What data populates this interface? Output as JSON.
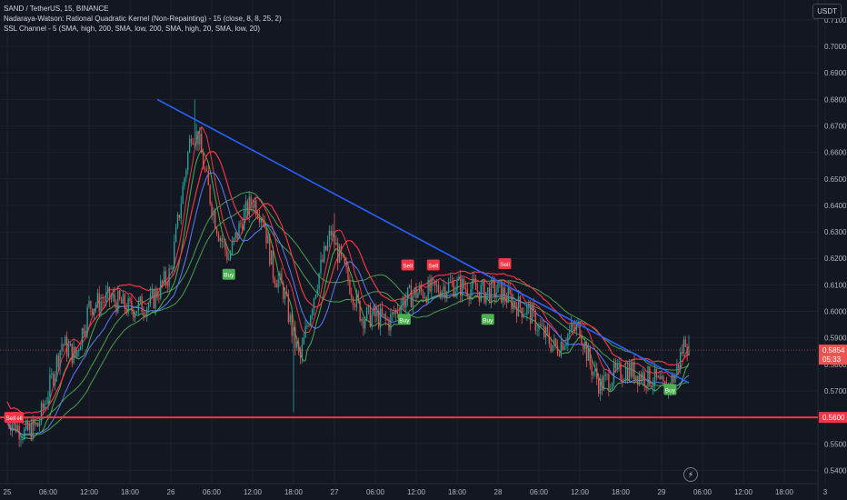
{
  "legend": {
    "line1": "SAND / TetherUS, 15, BINANCE",
    "line2": "Nadaraya-Watson: Rational Quadratic Kernel (Non-Repainting) - 15 (close, 8, 8, 25, 2)",
    "line3": "SSL Channel - 5 (SMA, high, 200, SMA, low, 200, SMA, high, 20, SMA, low, 20)"
  },
  "currency": "USDT",
  "colors": {
    "bg": "#131722",
    "up": "#26a69a",
    "down": "#ef5350",
    "grid": "#1e222d",
    "trend": "#2962ff",
    "support": "#f23645",
    "green_line": "#4caf50",
    "red_line": "#f23645",
    "blue_line": "#5b7cfa"
  },
  "chart_data": {
    "type": "candlestick",
    "timeframe": "15",
    "symbol": "SAND / TetherUS",
    "ylim": [
      0.535,
      0.7175
    ],
    "y_ticks": [
      "0.7100",
      "0.7000",
      "0.6900",
      "0.6800",
      "0.6700",
      "0.6600",
      "0.6500",
      "0.6400",
      "0.6300",
      "0.6200",
      "0.6100",
      "0.6000",
      "0.5900",
      "0.5800",
      "0.5700",
      "0.5600",
      "0.5500",
      "0.5400"
    ],
    "x_ticks": [
      {
        "label": "25",
        "t": 0
      },
      {
        "label": "06:00",
        "t": 24
      },
      {
        "label": "12:00",
        "t": 48
      },
      {
        "label": "18:00",
        "t": 72
      },
      {
        "label": "26",
        "t": 96
      },
      {
        "label": "06:00",
        "t": 120
      },
      {
        "label": "12:00",
        "t": 144
      },
      {
        "label": "18:00",
        "t": 168
      },
      {
        "label": "27",
        "t": 192
      },
      {
        "label": "06:00",
        "t": 216
      },
      {
        "label": "12:00",
        "t": 240
      },
      {
        "label": "18:00",
        "t": 264
      },
      {
        "label": "28",
        "t": 288
      },
      {
        "label": "06:00",
        "t": 312
      },
      {
        "label": "12:00",
        "t": 336
      },
      {
        "label": "18:00",
        "t": 360
      },
      {
        "label": "29",
        "t": 384
      },
      {
        "label": "06:00",
        "t": 408
      },
      {
        "label": "12:00",
        "t": 432
      },
      {
        "label": "18:00",
        "t": 456
      },
      {
        "label": "3",
        "t": 480
      }
    ],
    "last_bar_t": 400,
    "price_keypoints": [
      [
        0,
        0.56
      ],
      [
        10,
        0.554
      ],
      [
        18,
        0.557
      ],
      [
        25,
        0.572
      ],
      [
        32,
        0.588
      ],
      [
        40,
        0.583
      ],
      [
        48,
        0.602
      ],
      [
        60,
        0.605
      ],
      [
        72,
        0.601
      ],
      [
        84,
        0.603
      ],
      [
        96,
        0.615
      ],
      [
        102,
        0.642
      ],
      [
        108,
        0.668
      ],
      [
        112,
        0.666
      ],
      [
        116,
        0.652
      ],
      [
        120,
        0.64
      ],
      [
        124,
        0.63
      ],
      [
        130,
        0.62
      ],
      [
        138,
        0.635
      ],
      [
        144,
        0.642
      ],
      [
        150,
        0.636
      ],
      [
        156,
        0.615
      ],
      [
        162,
        0.608
      ],
      [
        168,
        0.59
      ],
      [
        172,
        0.582
      ],
      [
        176,
        0.595
      ],
      [
        182,
        0.612
      ],
      [
        190,
        0.63
      ],
      [
        194,
        0.622
      ],
      [
        200,
        0.612
      ],
      [
        208,
        0.598
      ],
      [
        216,
        0.598
      ],
      [
        224,
        0.596
      ],
      [
        232,
        0.604
      ],
      [
        240,
        0.607
      ],
      [
        250,
        0.608
      ],
      [
        260,
        0.61
      ],
      [
        270,
        0.609
      ],
      [
        280,
        0.607
      ],
      [
        288,
        0.608
      ],
      [
        294,
        0.605
      ],
      [
        300,
        0.602
      ],
      [
        306,
        0.6
      ],
      [
        314,
        0.592
      ],
      [
        322,
        0.586
      ],
      [
        330,
        0.592
      ],
      [
        336,
        0.594
      ],
      [
        342,
        0.58
      ],
      [
        348,
        0.572
      ],
      [
        356,
        0.576
      ],
      [
        364,
        0.578
      ],
      [
        372,
        0.576
      ],
      [
        380,
        0.574
      ],
      [
        386,
        0.57
      ],
      [
        392,
        0.576
      ],
      [
        398,
        0.59
      ],
      [
        400,
        0.5854
      ]
    ],
    "candles_per_keypoint_step": 1,
    "nadaraya_upper_offset": 0.006,
    "nadaraya_lower_offset": -0.002,
    "trendline": {
      "start": {
        "t": 88,
        "price": 0.68
      },
      "end": {
        "t": 400,
        "price": 0.573
      }
    },
    "support_line": 0.56,
    "current_price": {
      "value": "0.5854",
      "countdown": "05:33"
    },
    "support_label": "0.5600",
    "signals": [
      {
        "t": 6,
        "price": 0.56,
        "type": "sell",
        "label": "Sell"
      },
      {
        "t": 2,
        "price": 0.56,
        "type": "sell",
        "label": "Sell"
      },
      {
        "t": 130,
        "price": 0.614,
        "type": "buy",
        "label": "Buy"
      },
      {
        "t": 235,
        "price": 0.6175,
        "type": "sell",
        "label": "Sell"
      },
      {
        "t": 250,
        "price": 0.6175,
        "type": "sell",
        "label": "Sell"
      },
      {
        "t": 233,
        "price": 0.597,
        "type": "buy",
        "label": "Buy"
      },
      {
        "t": 282,
        "price": 0.597,
        "type": "buy",
        "label": "Buy"
      },
      {
        "t": 292,
        "price": 0.618,
        "type": "sell",
        "label": "Sell"
      },
      {
        "t": 389,
        "price": 0.5705,
        "type": "buy",
        "label": "Buy"
      }
    ]
  }
}
